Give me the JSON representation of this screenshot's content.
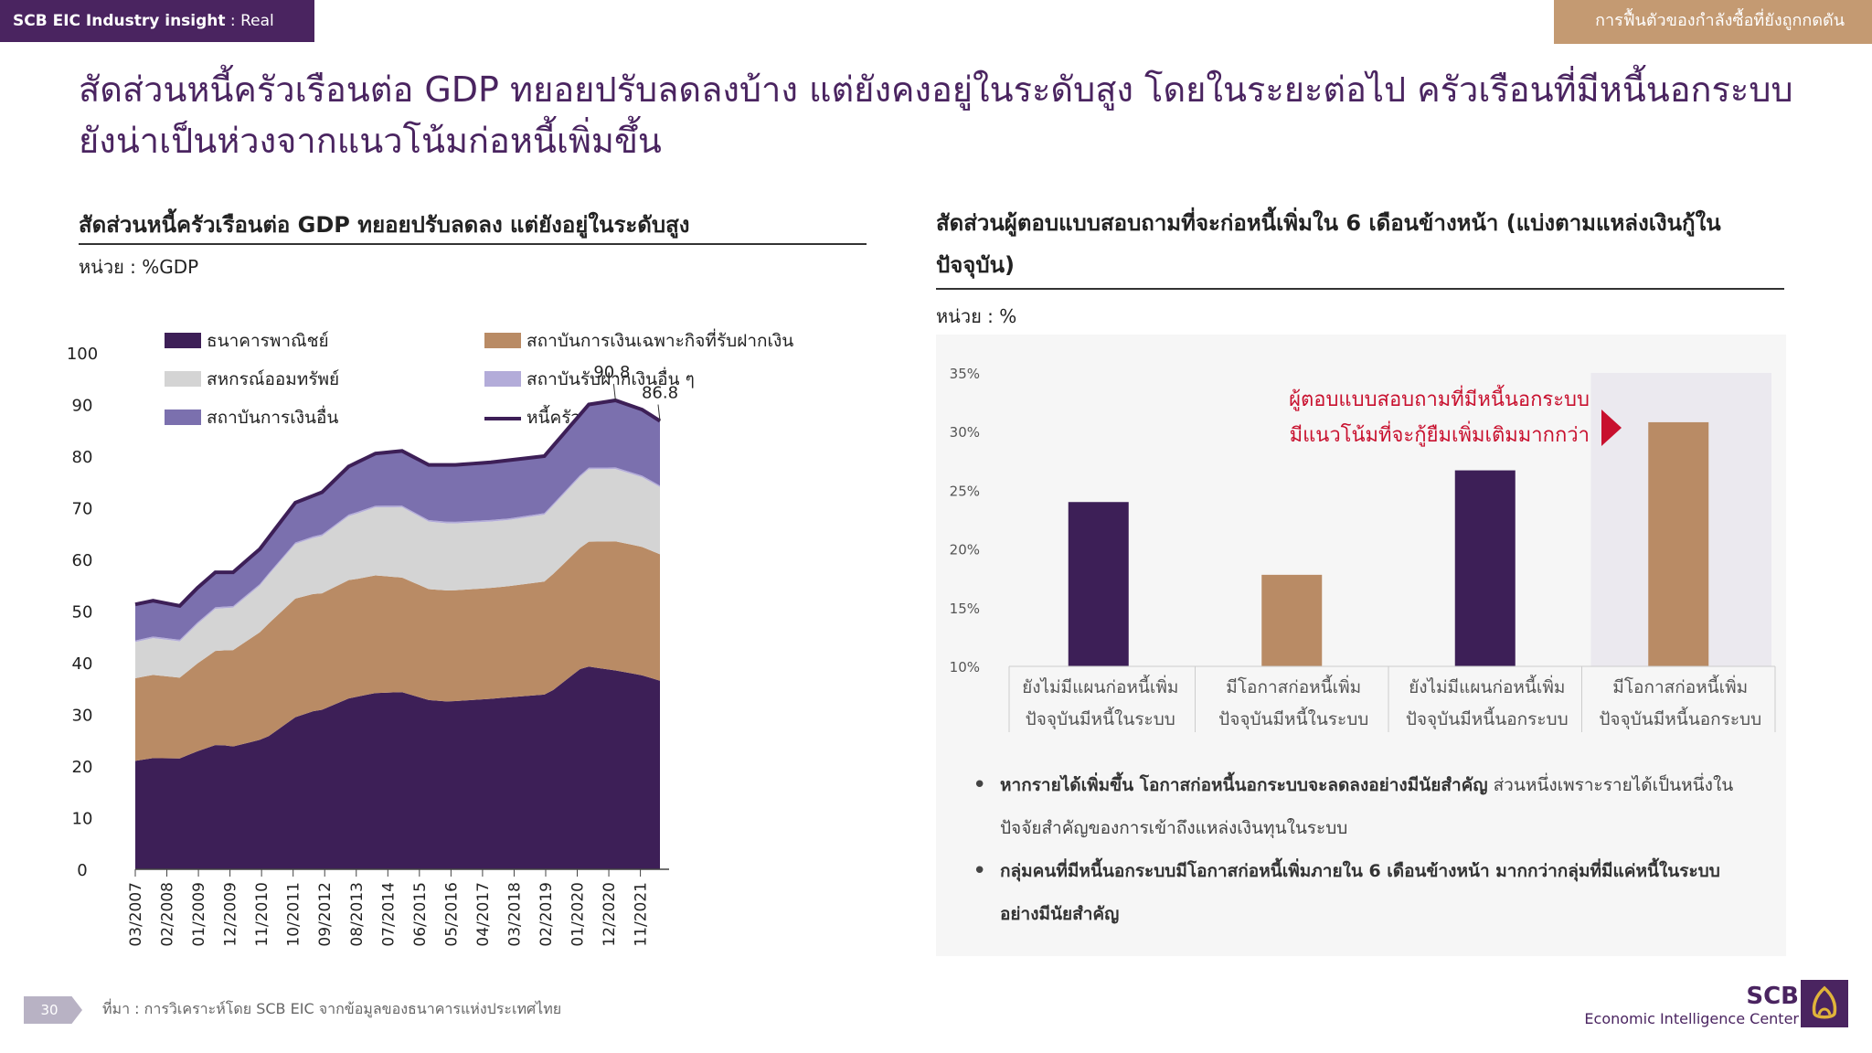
{
  "header": {
    "brand": "SCB EIC Industry insight",
    "section": " : Real estate",
    "right_tab": "การฟื้นตัวของกำลังซื้อที่ยังถูกกดดัน"
  },
  "headline": {
    "line1": "สัดส่วนหนี้ครัวเรือนต่อ GDP ทยอยปรับลดลงบ้าง แต่ยังคงอยู่ในระดับสูง โดยในระยะต่อไป ครัวเรือนที่มีหนี้นอกระบบ",
    "line2": "ยังน่าเป็นห่วงจากแนวโน้มก่อหนี้เพิ่มขึ้น"
  },
  "left_panel": {
    "title": "สัดส่วนหนี้ครัวเรือนต่อ GDP ทยอยปรับลดลง แต่ยังอยู่ในระดับสูง",
    "unit": "หน่วย : %GDP"
  },
  "right_panel": {
    "title_line1": "สัดส่วนผู้ตอบแบบสอบถามที่จะก่อหนี้เพิ่มใน 6 เดือนข้างหน้า (แบ่งตามแหล่งเงินกู้ใน",
    "title_line2": "ปัจจุบัน)",
    "unit": "หน่วย : %"
  },
  "chart_data": [
    {
      "type": "area",
      "title": "",
      "ylim": [
        0,
        100
      ],
      "yticks": [
        0,
        10,
        20,
        30,
        40,
        50,
        60,
        70,
        80,
        90,
        100
      ],
      "xtick_labels": [
        "03/2007",
        "02/2008",
        "01/2009",
        "12/2009",
        "11/2010",
        "10/2011",
        "09/2012",
        "08/2013",
        "07/2014",
        "06/2015",
        "05/2016",
        "04/2017",
        "03/2018",
        "02/2019",
        "01/2020",
        "12/2020",
        "11/2021"
      ],
      "x_count": 60,
      "stacked": true,
      "colors": {
        "commercial_banks": "#3d1f57",
        "sfi": "#b98b65",
        "coop": "#d4d4d4",
        "other_deposit": "#b3acd9",
        "other_fin": "#7b70ae",
        "total_line": "#3d1f57"
      },
      "legend": [
        {
          "key": "commercial_banks",
          "label": "ธนาคารพาณิชย์"
        },
        {
          "key": "sfi",
          "label": "สถาบันการเงินเฉพาะกิจที่รับฝากเงิน"
        },
        {
          "key": "coop",
          "label": "สหกรณ์ออมทรัพย์"
        },
        {
          "key": "other_deposit",
          "label": "สถาบันรับฝากเงินอื่น ๆ"
        },
        {
          "key": "other_fin",
          "label": "สถาบันการเงินอื่น"
        },
        {
          "key": "total_line",
          "label": "หนี้ครัวเรือน"
        }
      ],
      "annotations": [
        {
          "label": "90.8",
          "index": 54,
          "value": 90.8
        },
        {
          "label": "86.8",
          "index": 59,
          "value": 86.8
        }
      ],
      "series_keyframes": {
        "commercial_banks": [
          [
            0,
            21
          ],
          [
            5,
            21.3
          ],
          [
            10,
            23.5
          ],
          [
            15,
            26
          ],
          [
            20,
            31
          ],
          [
            25,
            33
          ],
          [
            30,
            34
          ],
          [
            35,
            32.5
          ],
          [
            42,
            32.5
          ],
          [
            47,
            34
          ],
          [
            50,
            38
          ],
          [
            54,
            38.5
          ],
          [
            59,
            36.5
          ]
        ],
        "sfi": [
          [
            0,
            16
          ],
          [
            5,
            15.5
          ],
          [
            10,
            18
          ],
          [
            15,
            22
          ],
          [
            20,
            23
          ],
          [
            25,
            22.5
          ],
          [
            30,
            22
          ],
          [
            35,
            21.5
          ],
          [
            42,
            21
          ],
          [
            47,
            22
          ],
          [
            50,
            23
          ],
          [
            54,
            25
          ],
          [
            59,
            24.5
          ]
        ],
        "coop": [
          [
            0,
            7
          ],
          [
            5,
            7
          ],
          [
            10,
            8
          ],
          [
            15,
            9.5
          ],
          [
            20,
            11
          ],
          [
            25,
            12.5
          ],
          [
            30,
            13.5
          ],
          [
            35,
            13
          ],
          [
            42,
            12.5
          ],
          [
            47,
            13
          ],
          [
            50,
            13.5
          ],
          [
            54,
            14
          ],
          [
            59,
            13
          ]
        ],
        "other_deposit": [
          [
            0,
            0.3
          ],
          [
            59,
            0.3
          ]
        ],
        "other_fin": [
          [
            0,
            7
          ],
          [
            5,
            6.5
          ],
          [
            10,
            6.5
          ],
          [
            15,
            7
          ],
          [
            20,
            8
          ],
          [
            25,
            9.5
          ],
          [
            30,
            10.5
          ],
          [
            35,
            11
          ],
          [
            42,
            11
          ],
          [
            47,
            11
          ],
          [
            50,
            11.5
          ],
          [
            54,
            13
          ],
          [
            59,
            12.5
          ]
        ]
      },
      "total_keyframes": [
        [
          0,
          51.3
        ],
        [
          2,
          52
        ],
        [
          5,
          51
        ],
        [
          7,
          54.5
        ],
        [
          9,
          57.5
        ],
        [
          11,
          57.5
        ],
        [
          14,
          62
        ],
        [
          18,
          71
        ],
        [
          21,
          73
        ],
        [
          24,
          78
        ],
        [
          27,
          80.5
        ],
        [
          30,
          81
        ],
        [
          33,
          78.3
        ],
        [
          36,
          78.3
        ],
        [
          40,
          78.8
        ],
        [
          46,
          80
        ],
        [
          49,
          86
        ],
        [
          51,
          90
        ],
        [
          54,
          90.8
        ],
        [
          57,
          89
        ],
        [
          59,
          86.8
        ]
      ]
    },
    {
      "type": "bar",
      "title": "",
      "ylim": [
        10,
        35
      ],
      "yticks": [
        10,
        15,
        20,
        25,
        30,
        35
      ],
      "ytick_labels": [
        "10%",
        "15%",
        "20%",
        "25%",
        "30%",
        "35%"
      ],
      "categories": [
        [
          "ยังไม่มีแผนก่อหนี้เพิ่ม",
          "ปัจจุบันมีหนี้ในระบบ"
        ],
        [
          "มีโอกาสก่อหนี้เพิ่ม",
          "ปัจจุบันมีหนี้ในระบบ"
        ],
        [
          "ยังไม่มีแผนก่อหนี้เพิ่ม",
          "ปัจจุบันมีหนี้นอกระบบ"
        ],
        [
          "มีโอกาสก่อหนี้เพิ่ม",
          "ปัจจุบันมีหนี้นอกระบบ"
        ]
      ],
      "values": [
        24,
        17.8,
        26.7,
        30.8
      ],
      "colors": [
        "#3d1f57",
        "#b98b65",
        "#3d1f57",
        "#b98b65"
      ],
      "highlight_index": 3,
      "highlight_color": "#ebe9ef",
      "annotation": {
        "line1": "ผู้ตอบแบบสอบถามที่มีหนี้นอกระบบ",
        "line2": "มีแนวโน้มที่จะกู้ยืมเพิ่มเติมมากกว่า",
        "color": "#c8102e"
      }
    }
  ],
  "bullets": [
    {
      "bold": "หากรายได้เพิ่มขึ้น โอกาสก่อหนี้นอกระบบจะลดลงอย่างมีนัยสำคัญ",
      "rest_line1": " ส่วนหนึ่งเพราะรายได้เป็นหนึ่งใน",
      "rest_line2": "ปัจจัยสำคัญของการเข้าถึงแหล่งเงินทุนในระบบ"
    },
    {
      "bold_line1": "กลุ่มคนที่มีหนี้นอกระบบมีโอกาสก่อหนี้เพิ่มภายใน 6 เดือนข้างหน้า มากกว่ากลุ่มที่มีแค่หนี้ในระบบ",
      "bold_line2": "อย่างมีนัยสำคัญ"
    }
  ],
  "footer": {
    "page": "30",
    "source": "ที่มา : การวิเคราะห์โดย SCB EIC จากข้อมูลของธนาคารแห่งประเทศไทย",
    "logo_big": "SCB",
    "logo_small": "Economic Intelligence Center"
  }
}
